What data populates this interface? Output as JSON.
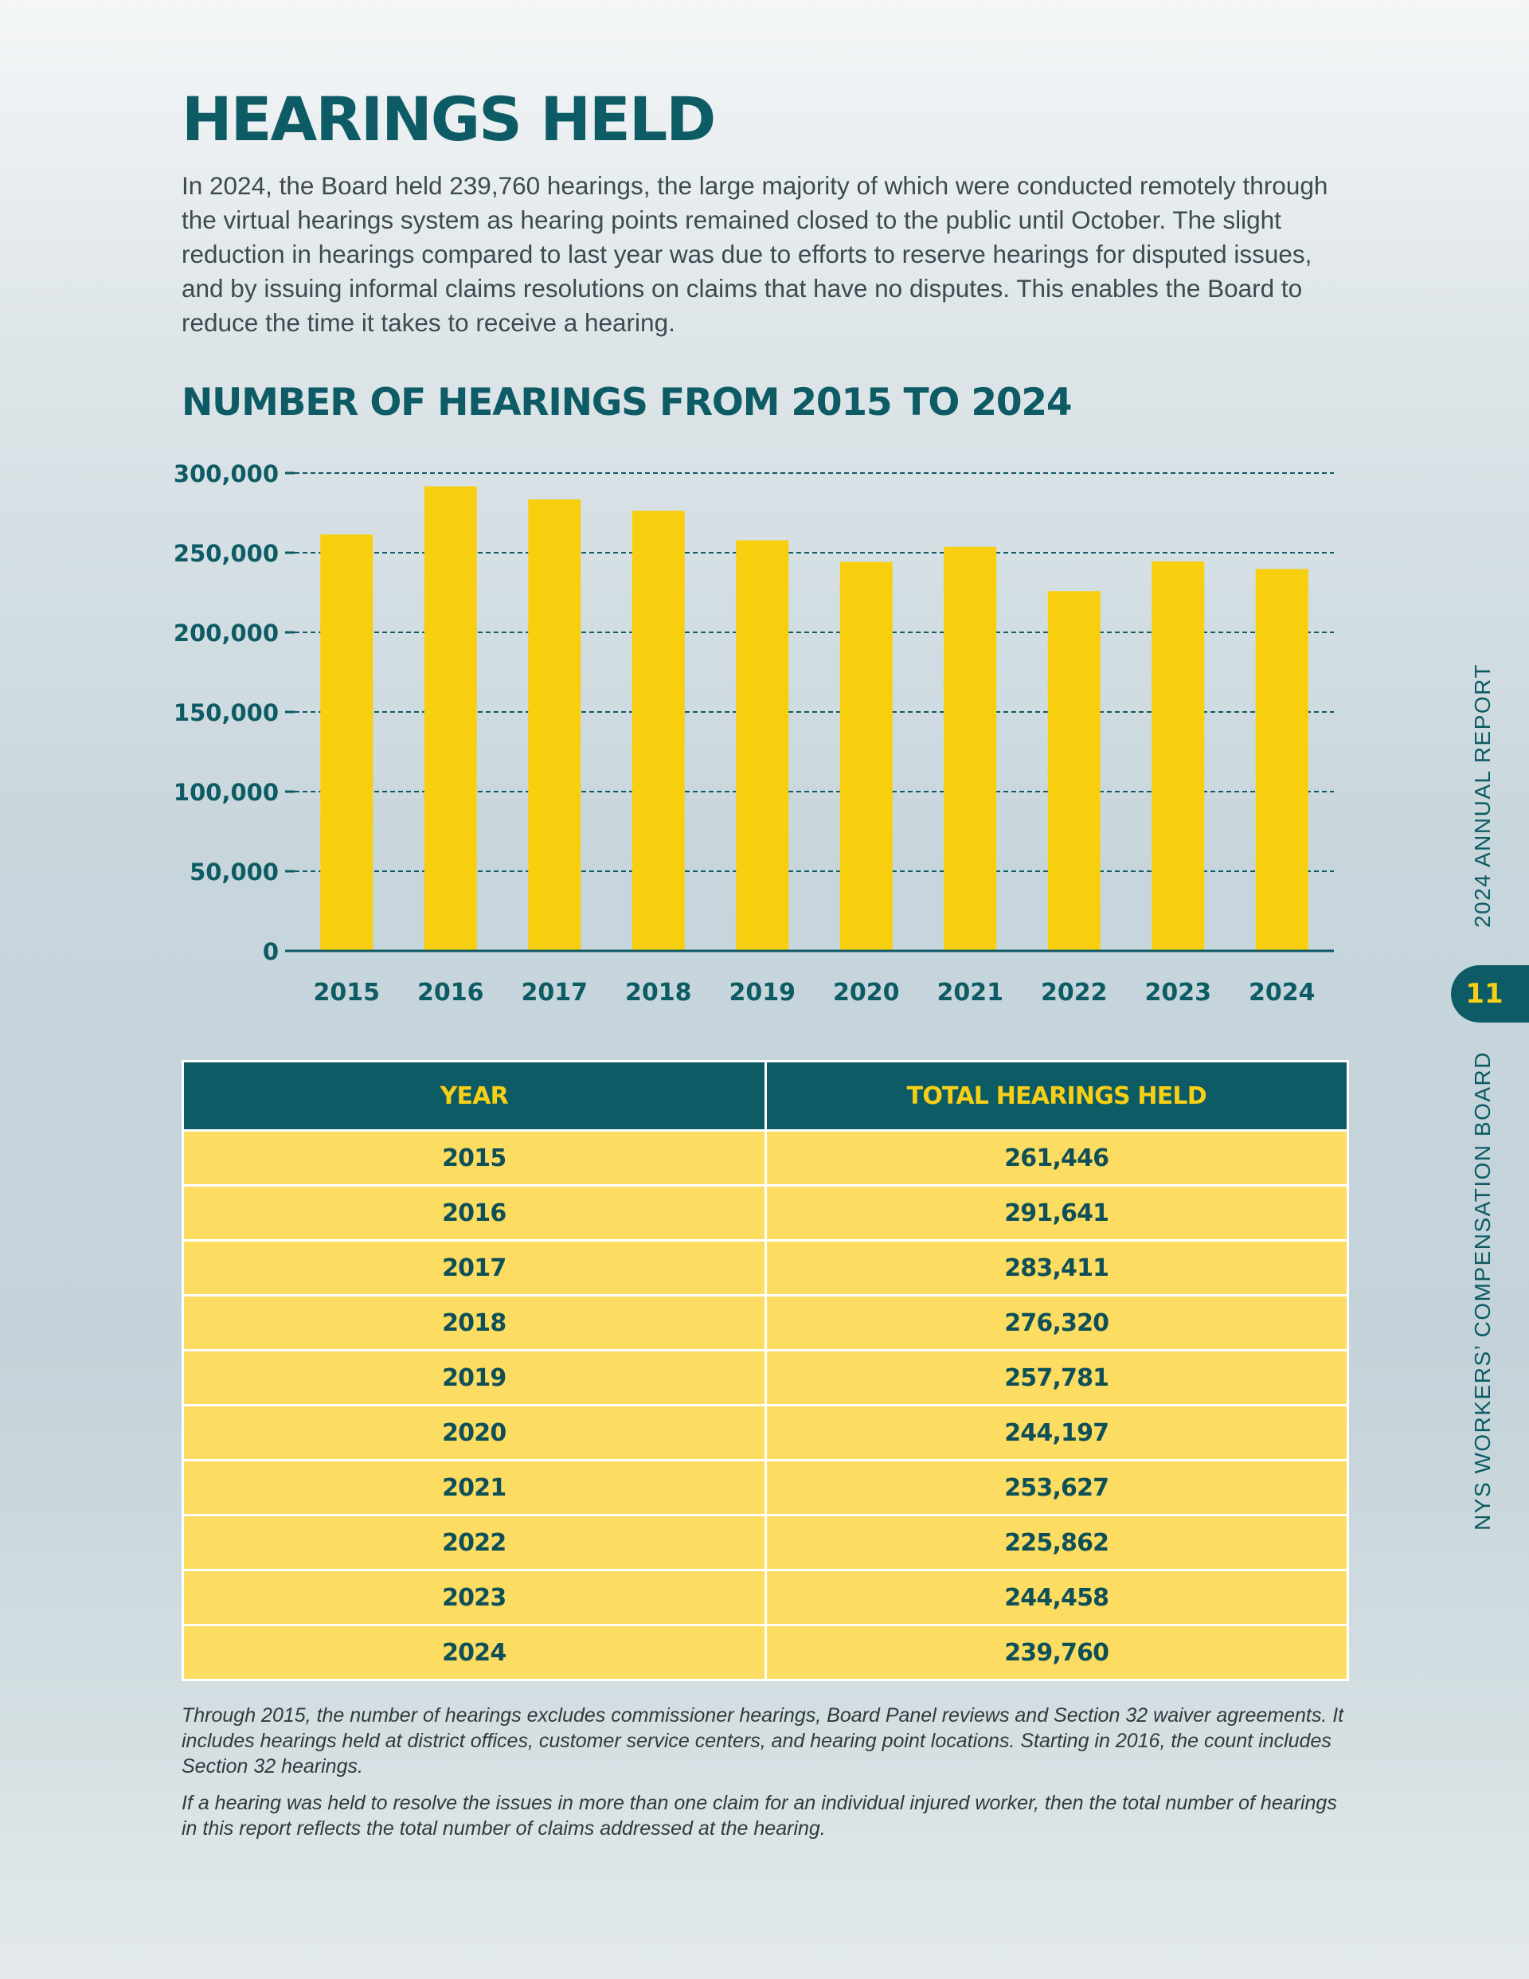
{
  "page": {
    "title": "HEARINGS HELD",
    "intro": "In 2024, the Board held 239,760 hearings, the large majority of which were conducted remotely through the virtual hearings system as hearing points remained closed to the public until October. The slight reduction in hearings compared to last year was due to efforts to reserve hearings for disputed issues, and by issuing informal claims resolutions on claims that have no disputes. This enables the Board to reduce the time it takes to receive a hearing.",
    "page_number": "11",
    "side_report": "2024 ANNUAL REPORT",
    "side_board": "NYS WORKERS’ COMPENSATION BOARD"
  },
  "chart_data": {
    "type": "bar",
    "title": "NUMBER OF HEARINGS FROM 2015 TO 2024",
    "categories": [
      "2015",
      "2016",
      "2017",
      "2018",
      "2019",
      "2020",
      "2021",
      "2022",
      "2023",
      "2024"
    ],
    "values": [
      261446,
      291641,
      283411,
      276320,
      257781,
      244197,
      253627,
      225862,
      244458,
      239760
    ],
    "yticks": [
      "0",
      "50,000",
      "100,000",
      "150,000",
      "200,000",
      "250,000",
      "300,000"
    ],
    "ylim": [
      0,
      300000
    ],
    "grid": true,
    "xlabel": "",
    "ylabel": "",
    "colors": {
      "bar": "#f7cf0f",
      "axis": "#0d5b64",
      "text": "#0d5b64"
    }
  },
  "table": {
    "headers": [
      "YEAR",
      "TOTAL HEARINGS HELD"
    ],
    "rows": [
      [
        "2015",
        "261,446"
      ],
      [
        "2016",
        "291,641"
      ],
      [
        "2017",
        "283,411"
      ],
      [
        "2018",
        "276,320"
      ],
      [
        "2019",
        "257,781"
      ],
      [
        "2020",
        "244,197"
      ],
      [
        "2021",
        "253,627"
      ],
      [
        "2022",
        "225,862"
      ],
      [
        "2023",
        "244,458"
      ],
      [
        "2024",
        "239,760"
      ]
    ]
  },
  "notes": [
    "Through 2015, the number of hearings excludes commissioner hearings, Board Panel reviews and Section 32 waiver agreements. It includes hearings held at district offices, customer service centers, and hearing point locations. Starting in 2016, the count includes Section 32 hearings.",
    "If a hearing was held to resolve the issues in more than one claim for an individual injured worker, then the total number of hearings in this report reflects the total number of claims addressed at the hearing."
  ]
}
